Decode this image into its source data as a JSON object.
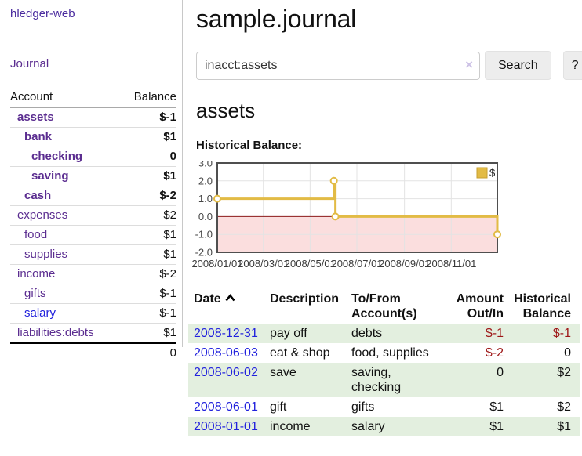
{
  "colors": {
    "brand_purple": "#4a2b9e",
    "purple_link": "#5b2d90",
    "blue_link": "#2222dd",
    "negative_strong": "#9d1616",
    "negative_muted": "#bd7d7d",
    "row_shade": "#e3efdf",
    "button_bg": "#ededed",
    "chart_line": "#e2bb45",
    "chart_marker_fill": "#ffffff",
    "chart_negative_fill": "#fbdede",
    "chart_zero_line": "#8e1a1a",
    "chart_grid": "#e3e3e3",
    "chart_border": "#4f4f4f"
  },
  "sidebar": {
    "brand": "hledger-web",
    "journal_label": "Journal",
    "accounts": {
      "headers": [
        "Account",
        "Balance"
      ],
      "rows": [
        {
          "label": "assets",
          "balance": "$-1",
          "level": 1,
          "bold": true,
          "balance_tone": "negative",
          "link_tone": "purple"
        },
        {
          "label": "bank",
          "balance": "$1",
          "level": 2,
          "bold": true,
          "balance_tone": "normal",
          "link_tone": "purple"
        },
        {
          "label": "checking",
          "balance": "0",
          "level": 3,
          "bold": true,
          "balance_tone": "normal",
          "link_tone": "purple"
        },
        {
          "label": "saving",
          "balance": "$1",
          "level": 3,
          "bold": true,
          "balance_tone": "normal",
          "link_tone": "purple"
        },
        {
          "label": "cash",
          "balance": "$-2",
          "level": 2,
          "bold": true,
          "balance_tone": "negative",
          "link_tone": "purple"
        },
        {
          "label": "expenses",
          "balance": "$2",
          "level": 1,
          "bold": false,
          "balance_tone": "normal",
          "link_tone": "purple"
        },
        {
          "label": "food",
          "balance": "$1",
          "level": 2,
          "bold": false,
          "balance_tone": "normal",
          "link_tone": "purple"
        },
        {
          "label": "supplies",
          "balance": "$1",
          "level": 2,
          "bold": false,
          "balance_tone": "normal",
          "link_tone": "purple"
        },
        {
          "label": "income",
          "balance": "$-2",
          "level": 1,
          "bold": false,
          "balance_tone": "negative-muted",
          "link_tone": "purple"
        },
        {
          "label": "gifts",
          "balance": "$-1",
          "level": 2,
          "bold": false,
          "balance_tone": "negative-muted",
          "link_tone": "purple"
        },
        {
          "label": "salary",
          "balance": "$-1",
          "level": 2,
          "bold": false,
          "balance_tone": "negative-muted",
          "link_tone": "blue"
        },
        {
          "label": "liabilities:debts",
          "balance": "$1",
          "level": 1,
          "bold": false,
          "balance_tone": "normal",
          "link_tone": "purple"
        }
      ],
      "total": "0"
    }
  },
  "main": {
    "title": "sample.journal",
    "search": {
      "value": "inacct:assets",
      "clear_icon": "×",
      "button_label": "Search",
      "help_label": "?"
    },
    "account_heading": "assets"
  },
  "chart_data": {
    "type": "line",
    "step": true,
    "title": "Historical Balance:",
    "legend": {
      "label": "$",
      "position": "top-right"
    },
    "xlim": [
      "2008-01-01",
      "2008-12-31"
    ],
    "ylim": [
      -2,
      3
    ],
    "yticks": [
      "3.0",
      "2.0",
      "1.0",
      "0.0",
      "-1.0",
      "-2.0"
    ],
    "xticks": [
      "2008/01/01",
      "2008/03/01",
      "2008/05/01",
      "2008/07/01",
      "2008/09/01",
      "2008/11/01"
    ],
    "series": [
      {
        "name": "$",
        "points": [
          [
            "2008-01-01",
            1
          ],
          [
            "2008-06-01",
            2
          ],
          [
            "2008-06-03",
            0
          ],
          [
            "2008-12-31",
            -1
          ]
        ]
      }
    ],
    "grid": true,
    "negative_region_shaded": true
  },
  "register": {
    "headers": {
      "date": "Date",
      "description": "Description",
      "account_line1": "To/From",
      "account_line2": "Account(s)",
      "amount_line1": "Amount",
      "amount_line2": "Out/In",
      "balance_line1": "Historical",
      "balance_line2": "Balance"
    },
    "rows": [
      {
        "date": "2008-12-31",
        "description": "pay off",
        "accounts": "debts",
        "amount": "$-1",
        "amount_tone": "negative",
        "balance": "$-1",
        "balance_tone": "negative",
        "shaded": true
      },
      {
        "date": "2008-06-03",
        "description": "eat & shop",
        "accounts": "food, supplies",
        "amount": "$-2",
        "amount_tone": "negative",
        "balance": "0",
        "balance_tone": "normal",
        "shaded": false
      },
      {
        "date": "2008-06-02",
        "description": "save",
        "accounts": "saving, checking",
        "amount": "0",
        "amount_tone": "normal",
        "balance": "$2",
        "balance_tone": "normal",
        "shaded": true
      },
      {
        "date": "2008-06-01",
        "description": "gift",
        "accounts": "gifts",
        "amount": "$1",
        "amount_tone": "normal",
        "balance": "$2",
        "balance_tone": "normal",
        "shaded": false
      },
      {
        "date": "2008-01-01",
        "description": "income",
        "accounts": "salary",
        "amount": "$1",
        "amount_tone": "normal",
        "balance": "$1",
        "balance_tone": "normal",
        "shaded": true
      }
    ]
  }
}
